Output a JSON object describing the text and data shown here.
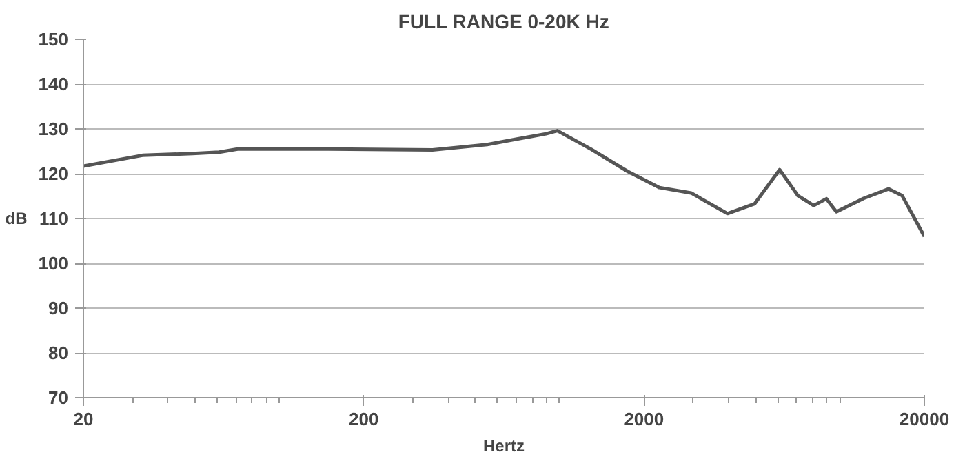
{
  "chart_data": {
    "type": "line",
    "title": "FULL RANGE 0-20K Hz",
    "xlabel": "Hertz",
    "ylabel": "dB",
    "log": "x",
    "grid": "y",
    "xlim": [
      20,
      20000
    ],
    "xticks": [
      20,
      200,
      2000,
      20000
    ],
    "ylim": [
      70,
      150
    ],
    "yticks": [
      70,
      80,
      90,
      100,
      110,
      120,
      130,
      140,
      150
    ],
    "x": [
      20,
      32.5,
      49,
      61,
      71,
      150,
      352,
      457,
      551,
      715,
      894,
      982,
      1300,
      1750,
      2270,
      2945,
      3970,
      4965,
      6095,
      7080,
      8060,
      8950,
      9710,
      12160,
      14900,
      16670,
      20000
    ],
    "series": [
      {
        "color": "#555555",
        "values": [
          121.7,
          124.1,
          124.5,
          124.8,
          125.5,
          125.5,
          125.3,
          126,
          126.5,
          127.8,
          128.9,
          129.6,
          125.4,
          120.5,
          116.9,
          115.7,
          111.1,
          113.3,
          120.9,
          115.1,
          112.9,
          114.4,
          111.5,
          114.5,
          116.6,
          115.1,
          106
        ]
      }
    ]
  }
}
